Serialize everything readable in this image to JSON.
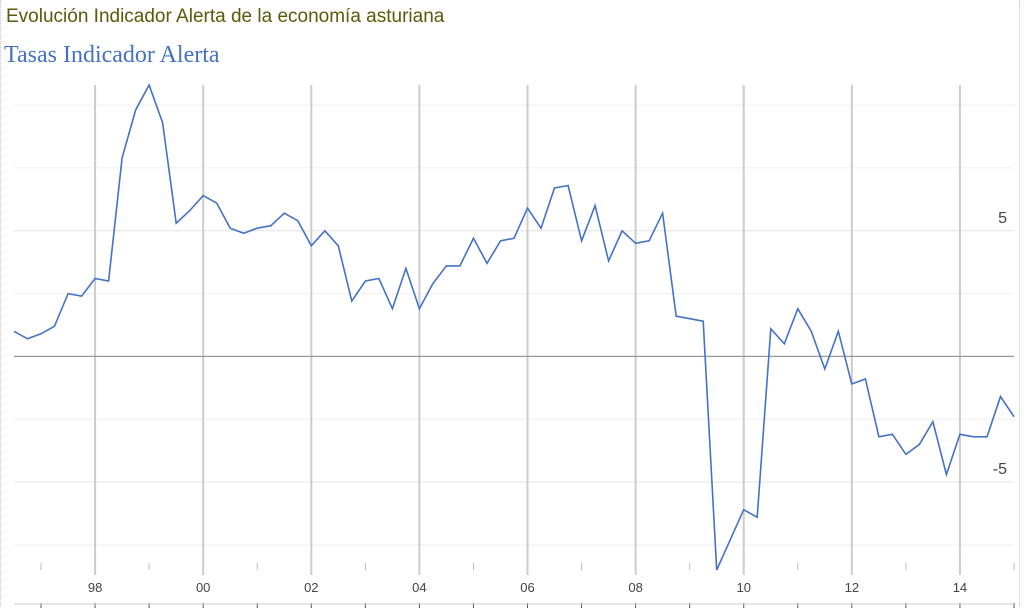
{
  "page": {
    "heading": "Evolución Indicador Alerta de la economía asturiana",
    "heading_color": "#5a5a0a"
  },
  "chart_data": {
    "type": "line",
    "title": "Tasas Indicador Alerta",
    "title_color": "#4472c4",
    "xlabel": "",
    "ylabel": "",
    "x_tick_labels": [
      "98",
      "00",
      "02",
      "04",
      "06",
      "08",
      "10",
      "12",
      "14"
    ],
    "y_tick_labels": [
      "5",
      "-5"
    ],
    "x_range": [
      1996.5,
      2015.0
    ],
    "ylim": [
      -8.5,
      10.8
    ],
    "grid": true,
    "zero_line": true,
    "series_color": "#4472c4",
    "series": [
      {
        "values": [
          [
            1996.5,
            1.0
          ],
          [
            1996.75,
            0.7
          ],
          [
            1997.0,
            0.9
          ],
          [
            1997.25,
            1.2
          ],
          [
            1997.5,
            2.5
          ],
          [
            1997.75,
            2.4
          ],
          [
            1998.0,
            3.1
          ],
          [
            1998.25,
            3.0
          ],
          [
            1998.5,
            7.9
          ],
          [
            1998.75,
            9.8
          ],
          [
            1999.0,
            10.8
          ],
          [
            1999.25,
            9.3
          ],
          [
            1999.5,
            5.3
          ],
          [
            1999.75,
            5.8
          ],
          [
            2000.0,
            6.4
          ],
          [
            2000.25,
            6.1
          ],
          [
            2000.5,
            5.1
          ],
          [
            2000.75,
            4.9
          ],
          [
            2001.0,
            5.1
          ],
          [
            2001.25,
            5.2
          ],
          [
            2001.5,
            5.7
          ],
          [
            2001.75,
            5.4
          ],
          [
            2002.0,
            4.4
          ],
          [
            2002.25,
            5.0
          ],
          [
            2002.5,
            4.4
          ],
          [
            2002.75,
            2.2
          ],
          [
            2003.0,
            3.0
          ],
          [
            2003.25,
            3.1
          ],
          [
            2003.5,
            1.9
          ],
          [
            2003.75,
            3.5
          ],
          [
            2004.0,
            1.9
          ],
          [
            2004.25,
            2.9
          ],
          [
            2004.5,
            3.6
          ],
          [
            2004.75,
            3.6
          ],
          [
            2005.0,
            4.7
          ],
          [
            2005.25,
            3.7
          ],
          [
            2005.5,
            4.6
          ],
          [
            2005.75,
            4.7
          ],
          [
            2006.0,
            5.9
          ],
          [
            2006.25,
            5.1
          ],
          [
            2006.5,
            6.7
          ],
          [
            2006.75,
            6.8
          ],
          [
            2007.0,
            4.6
          ],
          [
            2007.25,
            6.0
          ],
          [
            2007.5,
            3.8
          ],
          [
            2007.75,
            5.0
          ],
          [
            2008.0,
            4.5
          ],
          [
            2008.25,
            4.6
          ],
          [
            2008.5,
            5.7
          ],
          [
            2008.75,
            1.6
          ],
          [
            2009.0,
            1.5
          ],
          [
            2009.25,
            1.4
          ],
          [
            2009.5,
            -8.5
          ],
          [
            2009.75,
            -7.3
          ],
          [
            2010.0,
            -6.1
          ],
          [
            2010.25,
            -6.4
          ],
          [
            2010.5,
            1.1
          ],
          [
            2010.75,
            0.5
          ],
          [
            2011.0,
            1.9
          ],
          [
            2011.25,
            1.0
          ],
          [
            2011.5,
            -0.5
          ],
          [
            2011.75,
            1.0
          ],
          [
            2012.0,
            -1.1
          ],
          [
            2012.25,
            -0.9
          ],
          [
            2012.5,
            -3.2
          ],
          [
            2012.75,
            -3.1
          ],
          [
            2013.0,
            -3.9
          ],
          [
            2013.25,
            -3.5
          ],
          [
            2013.5,
            -2.6
          ],
          [
            2013.75,
            -4.7
          ],
          [
            2014.0,
            -3.1
          ],
          [
            2014.25,
            -3.2
          ],
          [
            2014.5,
            -3.2
          ],
          [
            2014.75,
            -1.6
          ],
          [
            2015.0,
            -2.4
          ]
        ]
      }
    ]
  }
}
